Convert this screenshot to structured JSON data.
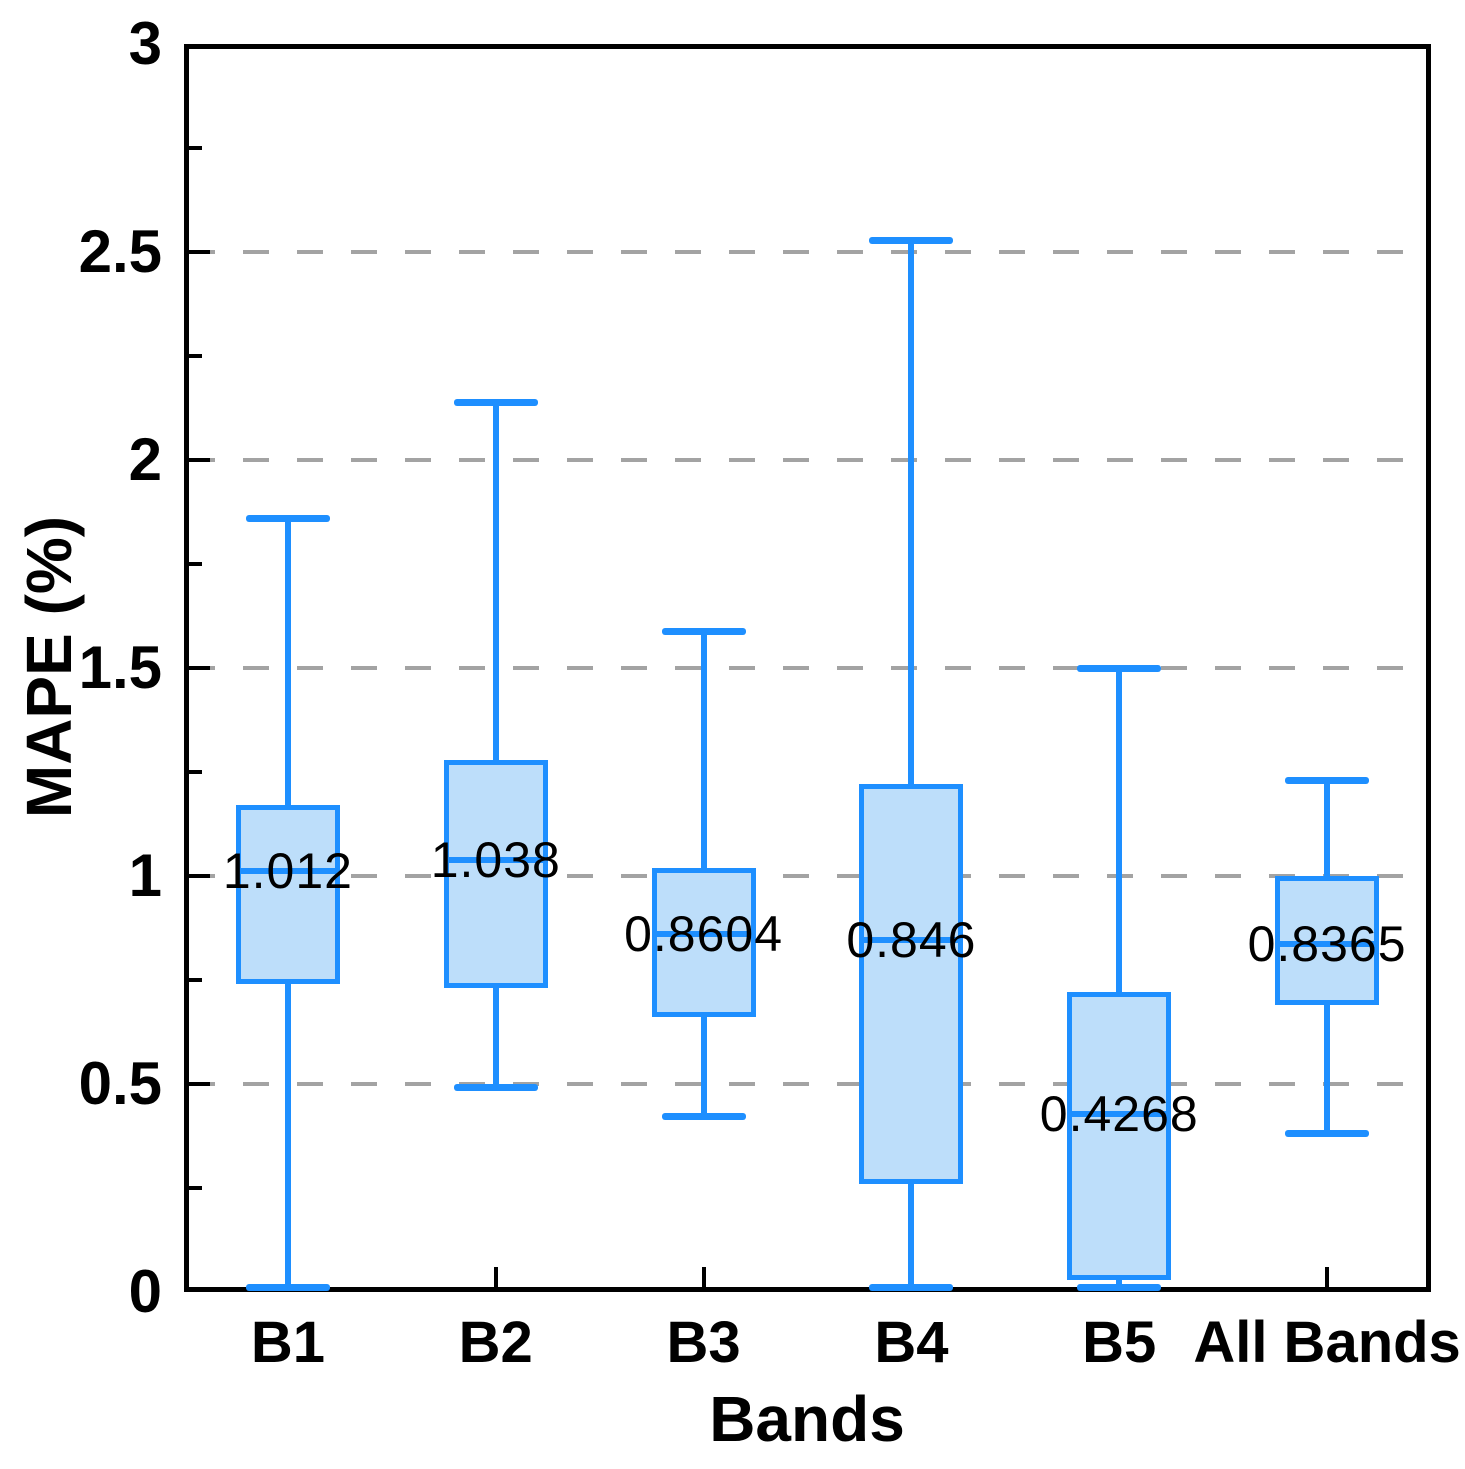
{
  "chart_data": {
    "type": "boxplot",
    "title": "",
    "xlabel": "Bands",
    "ylabel": "MAPE (%)",
    "ylim": [
      0,
      3
    ],
    "ytick_major": [
      0,
      0.5,
      1,
      1.5,
      2,
      2.5,
      3
    ],
    "ytick_major_labels": [
      "0",
      "0.5",
      "1",
      "1.5",
      "2",
      "2.5",
      "3"
    ],
    "ytick_minor_interval": 0.25,
    "gridline_values": [
      0.5,
      1,
      1.5,
      2,
      2.5
    ],
    "grid_style": "dashed",
    "legend": "none",
    "categories": [
      "B1",
      "B2",
      "B3",
      "B4",
      "B5",
      "All Bands"
    ],
    "series": [
      {
        "category": "B1",
        "whisker_low": 0.01,
        "q1": 0.74,
        "median": 1.012,
        "q3": 1.17,
        "whisker_high": 1.86,
        "median_label": "1.012"
      },
      {
        "category": "B2",
        "whisker_low": 0.49,
        "q1": 0.73,
        "median": 1.038,
        "q3": 1.28,
        "whisker_high": 2.14,
        "median_label": "1.038"
      },
      {
        "category": "B3",
        "whisker_low": 0.42,
        "q1": 0.66,
        "median": 0.8604,
        "q3": 1.02,
        "whisker_high": 1.59,
        "median_label": "0.8604"
      },
      {
        "category": "B4",
        "whisker_low": 0.01,
        "q1": 0.26,
        "median": 0.846,
        "q3": 1.22,
        "whisker_high": 2.53,
        "median_label": "0.846"
      },
      {
        "category": "B5",
        "whisker_low": 0.01,
        "q1": 0.03,
        "median": 0.4268,
        "q3": 0.72,
        "whisker_high": 1.5,
        "median_label": "0.4268"
      },
      {
        "category": "All Bands",
        "whisker_low": 0.38,
        "q1": 0.69,
        "median": 0.8365,
        "q3": 1.0,
        "whisker_high": 1.23,
        "median_label": "0.8365"
      }
    ],
    "colors": {
      "box_fill": "#BDDEFA",
      "box_stroke": "#1E8FFF",
      "gridline": "#A3A3A3",
      "axis_frame": "#000000",
      "text": "#000000",
      "background": "#FFFFFF"
    }
  }
}
